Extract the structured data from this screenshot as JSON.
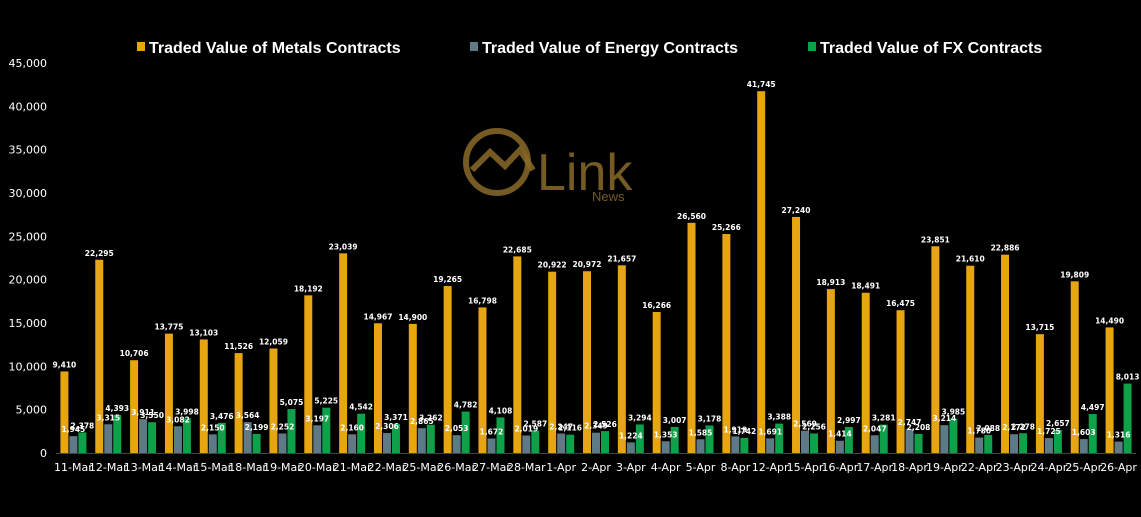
{
  "chart_data": {
    "type": "bar",
    "categories": [
      "11-Mar",
      "12-Mar",
      "13-Mar",
      "14-Mar",
      "15-Mar",
      "18-Mar",
      "19-Mar",
      "20-Mar",
      "21-Mar",
      "22-Mar",
      "25-Mar",
      "26-Mar",
      "27-Mar",
      "28-Mar",
      "1-Apr",
      "2-Apr",
      "3-Apr",
      "4-Apr",
      "5-Apr",
      "8-Apr",
      "12-Apr",
      "15-Apr",
      "16-Apr",
      "17-Apr",
      "18-Apr",
      "19-Apr",
      "22-Apr",
      "23-Apr",
      "24-Apr",
      "25-Apr",
      "26-Apr"
    ],
    "series": [
      {
        "name": "Traded Value of Metals Contracts",
        "color": "#E8A512",
        "values": [
          9410,
          22295,
          10706,
          13775,
          13103,
          11526,
          12059,
          18192,
          23039,
          14967,
          14900,
          19265,
          16798,
          22685,
          20922,
          20972,
          21657,
          16266,
          26560,
          25266,
          41745,
          27240,
          18913,
          18491,
          16475,
          23851,
          21610,
          22886,
          13715,
          19809,
          14490
        ],
        "labels": [
          "9,410",
          "22,295",
          "10,706",
          "13,775",
          "13,103",
          "11,526",
          "12,059",
          "18,192",
          "23,039",
          "14,967",
          "14,900",
          "19,265",
          "16,798",
          "22,685",
          "20,922",
          "20,972",
          "21,657",
          "16,266",
          "26,560",
          "25,266",
          "41,745",
          "27,240",
          "18,913",
          "18,491",
          "16,475",
          "23,851",
          "21,610",
          "22,886",
          "13,715",
          "19,809",
          "14,490"
        ]
      },
      {
        "name": "Traded Value of Energy Contracts",
        "color": "#5E7A87",
        "values": [
          1945,
          3315,
          3911,
          3082,
          2150,
          3564,
          2252,
          3197,
          2160,
          2306,
          2865,
          2053,
          1672,
          2019,
          2247,
          2349,
          1224,
          1353,
          1585,
          1919,
          1691,
          2569,
          1414,
          2047,
          2747,
          3214,
          1780,
          2172,
          1725,
          1603,
          1316
        ],
        "labels": [
          "1,945",
          "3,315",
          "3,911",
          "3,082",
          "2,150",
          "3,564",
          "2,252",
          "3,197",
          "2,160",
          "2,306",
          "2,865",
          "2,053",
          "1,672",
          "2,019",
          "2,247",
          "2,349",
          "1,224",
          "1,353",
          "1,585",
          "1,919",
          "1,691",
          "2,569",
          "1,414",
          "2,047",
          "2,747",
          "3,214",
          "1,780",
          "2,172",
          "1,725",
          "1,603",
          "1,316"
        ]
      },
      {
        "name": "Traded Value of FX Contracts",
        "color": "#0FA04A",
        "values": [
          2378,
          4393,
          3550,
          3998,
          3476,
          2199,
          5075,
          5225,
          4542,
          3371,
          3262,
          4782,
          4108,
          2587,
          2116,
          2526,
          3294,
          3007,
          3178,
          1742,
          3388,
          2256,
          2997,
          3281,
          2208,
          3985,
          2088,
          2278,
          2657,
          4497,
          8013
        ],
        "labels": [
          "2,378",
          "4,393",
          "3,550",
          "3,998",
          "3,476",
          "2,199",
          "5,075",
          "5,225",
          "4,542",
          "3,371",
          "3,262",
          "4,782",
          "4,108",
          "2,587",
          "2,116",
          "2,526",
          "3,294",
          "3,007",
          "3,178",
          "1,742",
          "3,388",
          "2,256",
          "2,997",
          "3,281",
          "2,208",
          "3,985",
          "2,088",
          "2,278",
          "2,657",
          "4,497",
          "8,013"
        ]
      }
    ],
    "ylim": [
      0,
      45000
    ],
    "yticks": [
      0,
      5000,
      10000,
      15000,
      20000,
      25000,
      30000,
      35000,
      40000,
      45000
    ],
    "ytick_labels": [
      "0",
      "5,000",
      "10,000",
      "15,000",
      "20,000",
      "25,000",
      "30,000",
      "35,000",
      "40,000",
      "45,000"
    ],
    "grid": false,
    "legend_position": "top-center"
  },
  "watermark": {
    "brand": "Link",
    "sub": "News",
    "color": "#8A6A2A"
  }
}
